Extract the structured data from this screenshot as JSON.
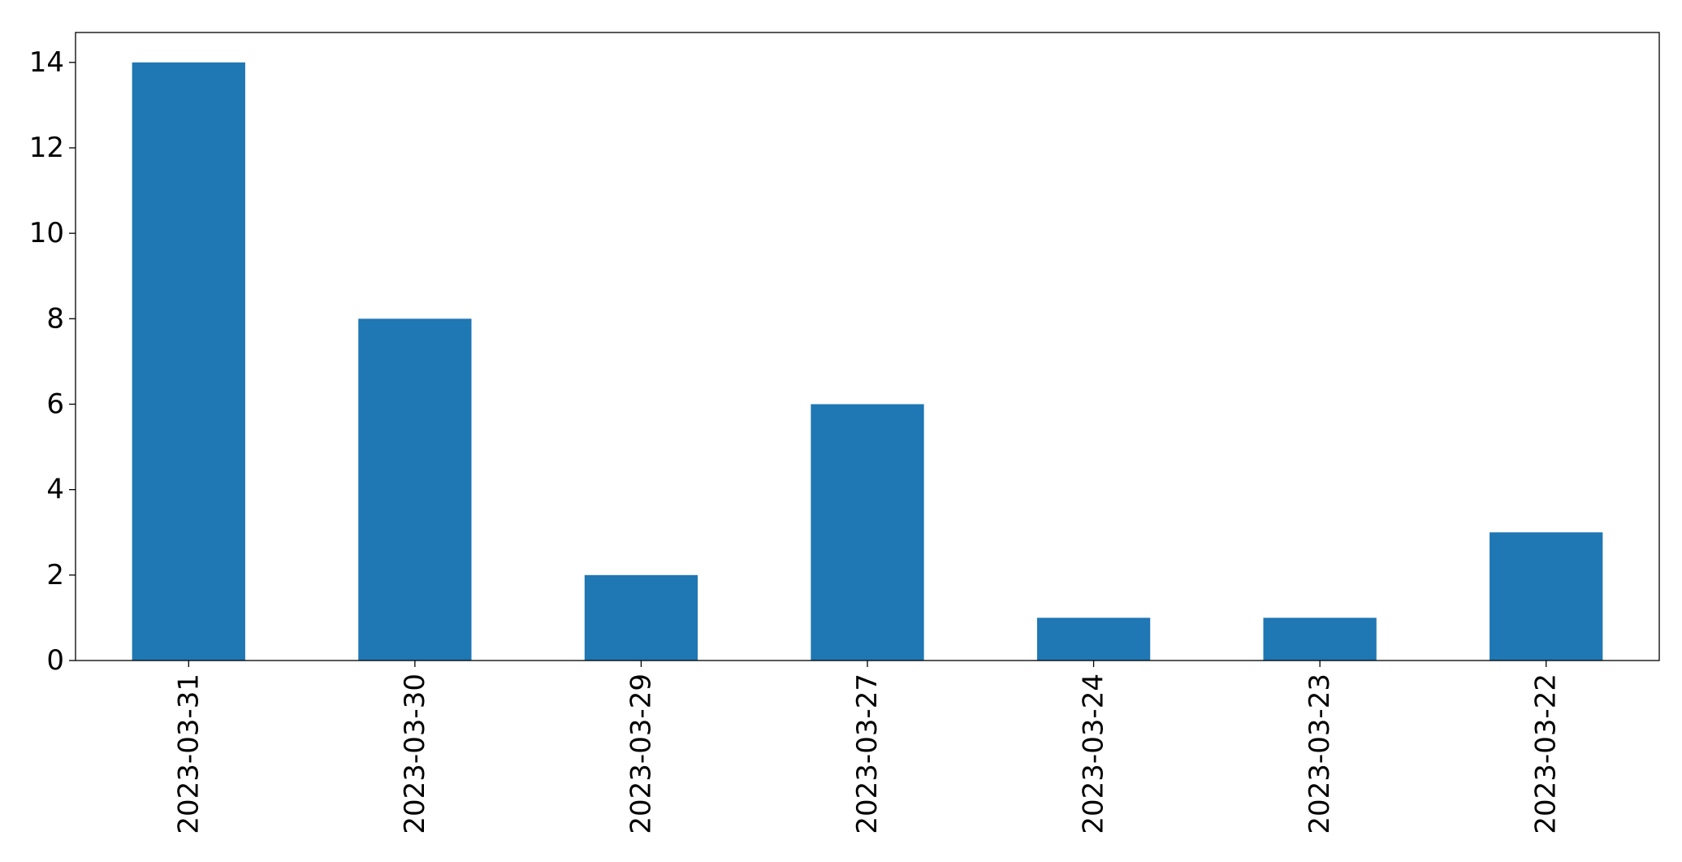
{
  "chart_data": {
    "type": "bar",
    "title": "",
    "xlabel": "",
    "ylabel": "",
    "categories": [
      "2023-03-31",
      "2023-03-30",
      "2023-03-29",
      "2023-03-27",
      "2023-03-24",
      "2023-03-23",
      "2023-03-22"
    ],
    "values": [
      14,
      8,
      2,
      6,
      1,
      1,
      3
    ],
    "ylim": [
      0,
      14.7
    ],
    "yticks": [
      0,
      2,
      4,
      6,
      8,
      10,
      12,
      14
    ],
    "bar_color": "#1f77b4",
    "grid": false,
    "legend": false,
    "xtick_rotation": "vertical"
  }
}
